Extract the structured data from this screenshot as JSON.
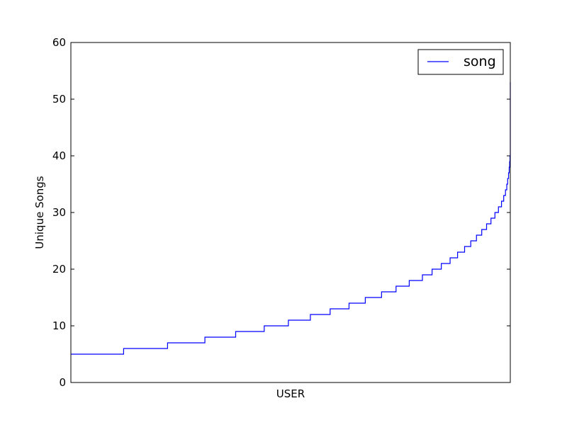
{
  "chart_data": {
    "type": "line",
    "title": "",
    "xlabel": "USER",
    "ylabel": "Unique Songs",
    "ylim": [
      0,
      60
    ],
    "y_ticks": [
      "0",
      "10",
      "20",
      "30",
      "40",
      "50",
      "60"
    ],
    "x_ticks": [],
    "grid": false,
    "legend": "top-right",
    "line_color": "#0000ff",
    "series": [
      {
        "name": "song",
        "x": [
          0.0,
          0.12,
          0.22,
          0.305,
          0.375,
          0.44,
          0.495,
          0.545,
          0.59,
          0.633,
          0.67,
          0.707,
          0.74,
          0.77,
          0.8,
          0.822,
          0.843,
          0.863,
          0.88,
          0.896,
          0.91,
          0.923,
          0.935,
          0.946,
          0.956,
          0.965,
          0.973,
          0.98,
          0.985,
          0.989,
          0.992,
          0.994,
          0.996,
          0.9975,
          0.9985,
          0.9993,
          1.0
        ],
        "y": [
          5,
          6,
          7,
          8,
          9,
          10,
          11,
          12,
          13,
          14,
          15,
          16,
          17,
          18,
          19,
          20,
          21,
          22,
          23,
          24,
          25,
          26,
          27,
          28,
          29,
          30,
          31,
          32,
          33,
          34,
          35,
          36,
          37,
          38,
          39,
          40,
          53
        ]
      }
    ]
  }
}
